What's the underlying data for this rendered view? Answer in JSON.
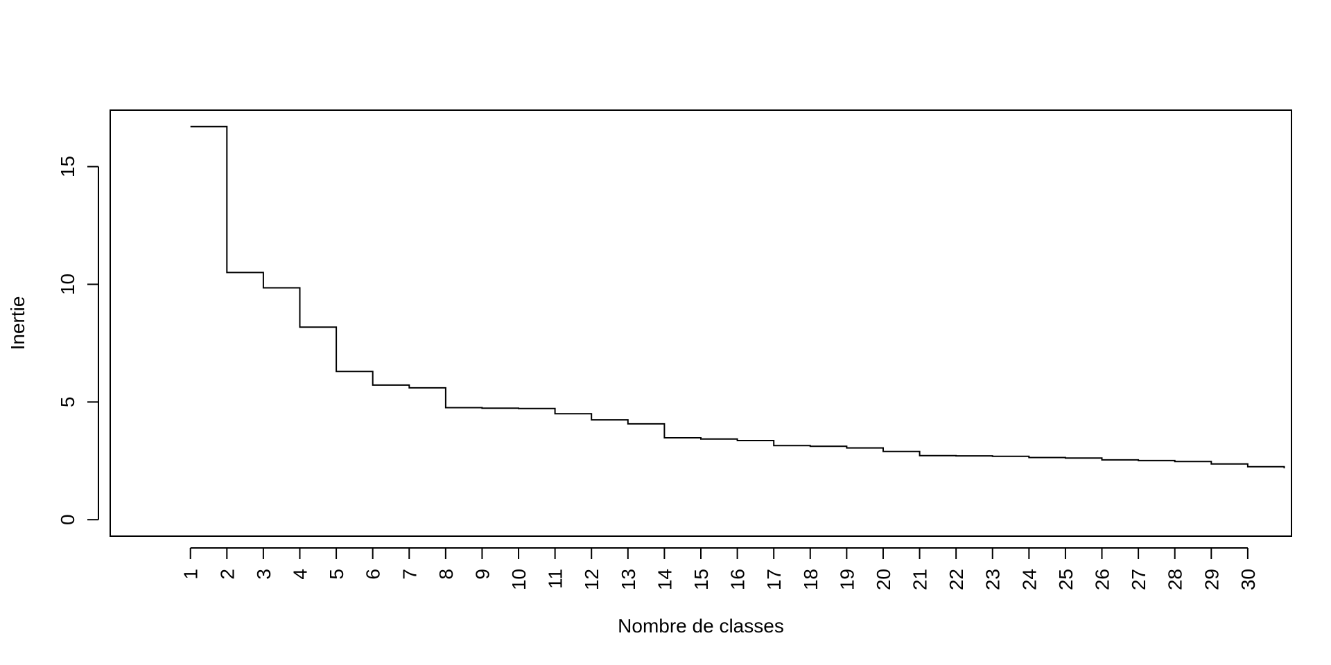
{
  "chart_data": {
    "type": "line",
    "step": true,
    "title": "",
    "xlabel": "Nombre de classes",
    "ylabel": "Inertie",
    "x_ticks": [
      1,
      2,
      3,
      4,
      5,
      6,
      7,
      8,
      9,
      10,
      11,
      12,
      13,
      14,
      15,
      16,
      17,
      18,
      19,
      20,
      21,
      22,
      23,
      24,
      25,
      26,
      27,
      28,
      29,
      30
    ],
    "x_tick_labels": [
      "1",
      "2",
      "3",
      "4",
      "5",
      "6",
      "7",
      "8",
      "9",
      "10",
      "11",
      "12",
      "13",
      "14",
      "15",
      "16",
      "17",
      "18",
      "19",
      "20",
      "21",
      "22",
      "23",
      "24",
      "25",
      "26",
      "27",
      "28",
      "29",
      "30"
    ],
    "y_ticks": [
      0,
      5,
      10,
      15
    ],
    "y_tick_labels": [
      "0",
      "5",
      "10",
      "15"
    ],
    "xlim": [
      -1.2,
      31.2
    ],
    "ylim": [
      -0.7,
      17.4
    ],
    "grid": false,
    "legend": "none",
    "x": [
      1,
      2,
      3,
      4,
      5,
      6,
      7,
      8,
      9,
      10,
      11,
      12,
      13,
      14,
      15,
      16,
      17,
      18,
      19,
      20,
      21,
      22,
      23,
      24,
      25,
      26,
      27,
      28,
      29,
      30,
      31
    ],
    "values": [
      16.7,
      10.5,
      9.85,
      8.18,
      6.3,
      5.72,
      5.6,
      4.76,
      4.74,
      4.72,
      4.5,
      4.24,
      4.07,
      3.48,
      3.43,
      3.36,
      3.15,
      3.12,
      3.05,
      2.9,
      2.72,
      2.71,
      2.69,
      2.64,
      2.62,
      2.54,
      2.51,
      2.47,
      2.37,
      2.25,
      2.18
    ],
    "colors": {
      "line": "#000000",
      "axis": "#000000"
    }
  }
}
